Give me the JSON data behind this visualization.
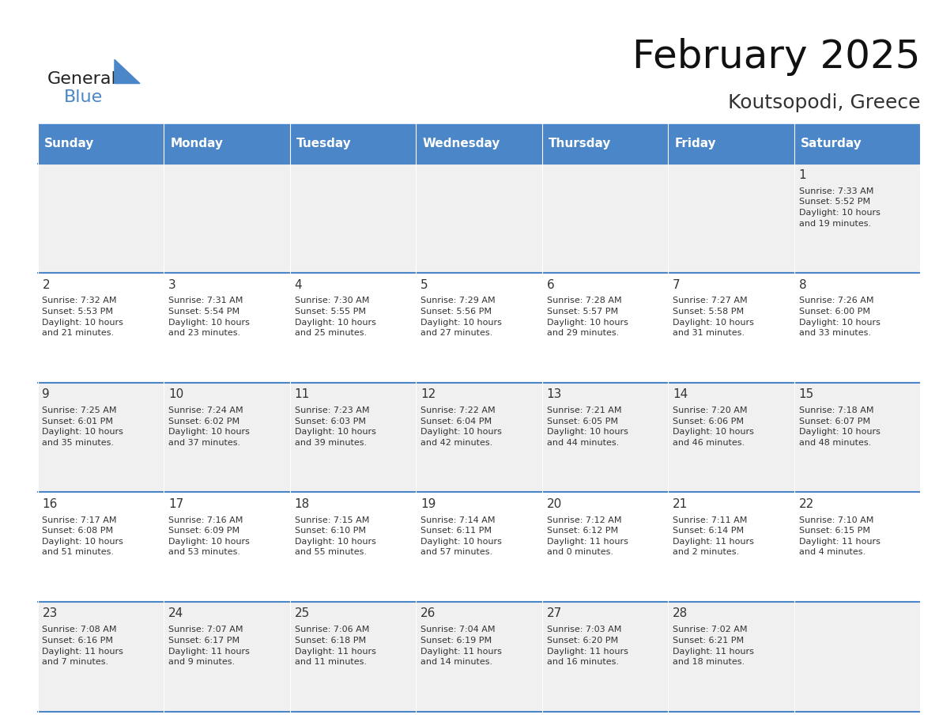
{
  "title": "February 2025",
  "subtitle": "Koutsopodi, Greece",
  "header_color": "#4a86c8",
  "header_text_color": "#ffffff",
  "cell_bg_even": "#f0f0f0",
  "cell_bg_odd": "#ffffff",
  "border_color": "#4a86c8",
  "days_of_week": [
    "Sunday",
    "Monday",
    "Tuesday",
    "Wednesday",
    "Thursday",
    "Friday",
    "Saturday"
  ],
  "weeks": [
    [
      {
        "day": "",
        "info": ""
      },
      {
        "day": "",
        "info": ""
      },
      {
        "day": "",
        "info": ""
      },
      {
        "day": "",
        "info": ""
      },
      {
        "day": "",
        "info": ""
      },
      {
        "day": "",
        "info": ""
      },
      {
        "day": "1",
        "info": "Sunrise: 7:33 AM\nSunset: 5:52 PM\nDaylight: 10 hours\nand 19 minutes."
      }
    ],
    [
      {
        "day": "2",
        "info": "Sunrise: 7:32 AM\nSunset: 5:53 PM\nDaylight: 10 hours\nand 21 minutes."
      },
      {
        "day": "3",
        "info": "Sunrise: 7:31 AM\nSunset: 5:54 PM\nDaylight: 10 hours\nand 23 minutes."
      },
      {
        "day": "4",
        "info": "Sunrise: 7:30 AM\nSunset: 5:55 PM\nDaylight: 10 hours\nand 25 minutes."
      },
      {
        "day": "5",
        "info": "Sunrise: 7:29 AM\nSunset: 5:56 PM\nDaylight: 10 hours\nand 27 minutes."
      },
      {
        "day": "6",
        "info": "Sunrise: 7:28 AM\nSunset: 5:57 PM\nDaylight: 10 hours\nand 29 minutes."
      },
      {
        "day": "7",
        "info": "Sunrise: 7:27 AM\nSunset: 5:58 PM\nDaylight: 10 hours\nand 31 minutes."
      },
      {
        "day": "8",
        "info": "Sunrise: 7:26 AM\nSunset: 6:00 PM\nDaylight: 10 hours\nand 33 minutes."
      }
    ],
    [
      {
        "day": "9",
        "info": "Sunrise: 7:25 AM\nSunset: 6:01 PM\nDaylight: 10 hours\nand 35 minutes."
      },
      {
        "day": "10",
        "info": "Sunrise: 7:24 AM\nSunset: 6:02 PM\nDaylight: 10 hours\nand 37 minutes."
      },
      {
        "day": "11",
        "info": "Sunrise: 7:23 AM\nSunset: 6:03 PM\nDaylight: 10 hours\nand 39 minutes."
      },
      {
        "day": "12",
        "info": "Sunrise: 7:22 AM\nSunset: 6:04 PM\nDaylight: 10 hours\nand 42 minutes."
      },
      {
        "day": "13",
        "info": "Sunrise: 7:21 AM\nSunset: 6:05 PM\nDaylight: 10 hours\nand 44 minutes."
      },
      {
        "day": "14",
        "info": "Sunrise: 7:20 AM\nSunset: 6:06 PM\nDaylight: 10 hours\nand 46 minutes."
      },
      {
        "day": "15",
        "info": "Sunrise: 7:18 AM\nSunset: 6:07 PM\nDaylight: 10 hours\nand 48 minutes."
      }
    ],
    [
      {
        "day": "16",
        "info": "Sunrise: 7:17 AM\nSunset: 6:08 PM\nDaylight: 10 hours\nand 51 minutes."
      },
      {
        "day": "17",
        "info": "Sunrise: 7:16 AM\nSunset: 6:09 PM\nDaylight: 10 hours\nand 53 minutes."
      },
      {
        "day": "18",
        "info": "Sunrise: 7:15 AM\nSunset: 6:10 PM\nDaylight: 10 hours\nand 55 minutes."
      },
      {
        "day": "19",
        "info": "Sunrise: 7:14 AM\nSunset: 6:11 PM\nDaylight: 10 hours\nand 57 minutes."
      },
      {
        "day": "20",
        "info": "Sunrise: 7:12 AM\nSunset: 6:12 PM\nDaylight: 11 hours\nand 0 minutes."
      },
      {
        "day": "21",
        "info": "Sunrise: 7:11 AM\nSunset: 6:14 PM\nDaylight: 11 hours\nand 2 minutes."
      },
      {
        "day": "22",
        "info": "Sunrise: 7:10 AM\nSunset: 6:15 PM\nDaylight: 11 hours\nand 4 minutes."
      }
    ],
    [
      {
        "day": "23",
        "info": "Sunrise: 7:08 AM\nSunset: 6:16 PM\nDaylight: 11 hours\nand 7 minutes."
      },
      {
        "day": "24",
        "info": "Sunrise: 7:07 AM\nSunset: 6:17 PM\nDaylight: 11 hours\nand 9 minutes."
      },
      {
        "day": "25",
        "info": "Sunrise: 7:06 AM\nSunset: 6:18 PM\nDaylight: 11 hours\nand 11 minutes."
      },
      {
        "day": "26",
        "info": "Sunrise: 7:04 AM\nSunset: 6:19 PM\nDaylight: 11 hours\nand 14 minutes."
      },
      {
        "day": "27",
        "info": "Sunrise: 7:03 AM\nSunset: 6:20 PM\nDaylight: 11 hours\nand 16 minutes."
      },
      {
        "day": "28",
        "info": "Sunrise: 7:02 AM\nSunset: 6:21 PM\nDaylight: 11 hours\nand 18 minutes."
      },
      {
        "day": "",
        "info": ""
      }
    ]
  ],
  "logo_text_general": "General",
  "logo_text_blue": "Blue",
  "logo_color_general": "#222222",
  "logo_color_blue": "#4a86c8",
  "title_fontsize": 36,
  "subtitle_fontsize": 18,
  "day_number_fontsize": 11,
  "cell_text_fontsize": 8,
  "header_fontsize": 11
}
